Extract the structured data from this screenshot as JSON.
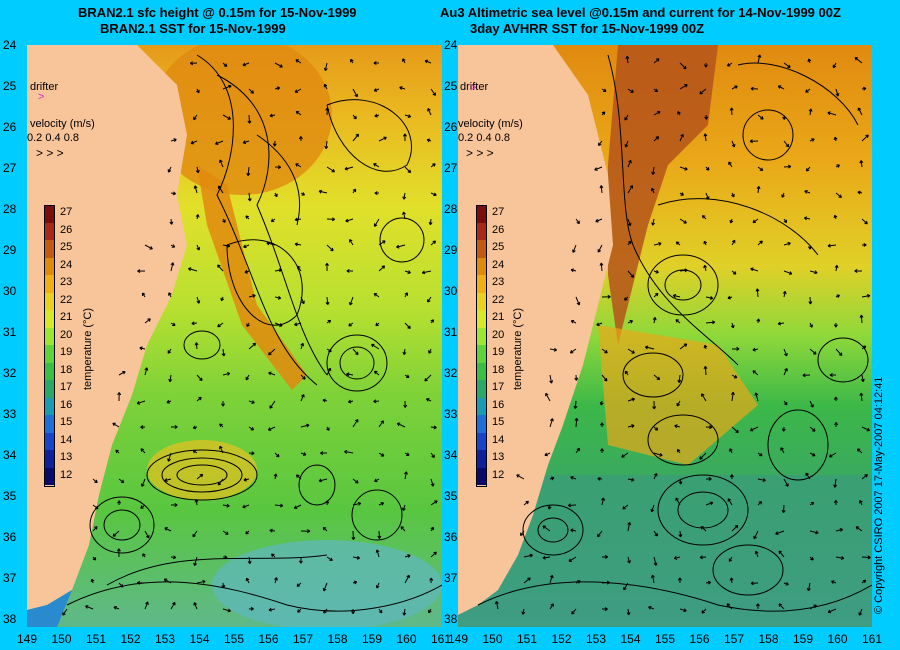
{
  "left_panel": {
    "title_line1": "BRAN2.1 sfc height @ 0.15m for 15-Nov-1999",
    "title_line2": "BRAN2.1 SST for 15-Nov-1999"
  },
  "right_panel": {
    "title_line1": "Au3 Altimetric sea level  @0.15m and current for 14-Nov-1999 00Z",
    "title_line2": "3day AVHRR SST for 15-Nov-1999 00Z"
  },
  "latitude_labels": [
    "24",
    "25",
    "26",
    "27",
    "28",
    "29",
    "30",
    "31",
    "32",
    "33",
    "34",
    "35",
    "36",
    "37",
    "38"
  ],
  "longitude_labels": [
    "149",
    "150",
    "151",
    "152",
    "153",
    "154",
    "155",
    "156",
    "157",
    "158",
    "159",
    "160",
    "161"
  ],
  "drifter_label": "drifter",
  "velocity_legend": {
    "title": "velocity (m/s)",
    "scale": "0.2 0.4 0.8"
  },
  "colorbar": {
    "title": "temperature (°C)",
    "ticks": [
      "27",
      "26",
      "25",
      "24",
      "23",
      "22",
      "21",
      "20",
      "19",
      "18",
      "17",
      "16",
      "15",
      "14",
      "13",
      "12"
    ],
    "colors": [
      "#7a0e0e",
      "#a52a1a",
      "#c25a12",
      "#e08a0c",
      "#f0b015",
      "#e8d21f",
      "#d6e82a",
      "#9de632",
      "#5ed43a",
      "#3cbe46",
      "#2aa868",
      "#1a9bb0",
      "#1e6fd6",
      "#1a44c8",
      "#101f9a",
      "#0a0a6a"
    ]
  },
  "copyright": "© Copyright CSIRO 2007   17-May-2007 04:12:41"
}
